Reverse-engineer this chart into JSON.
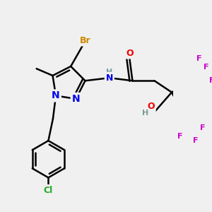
{
  "bg_color": "#f0f0f0",
  "atom_colors": {
    "C": "#000000",
    "H": "#7a9a9a",
    "N": "#0000ee",
    "O": "#ee0000",
    "F": "#cc00cc",
    "Br": "#cc8800",
    "Cl": "#22aa22"
  },
  "bond_color": "#000000",
  "bond_width": 1.8
}
